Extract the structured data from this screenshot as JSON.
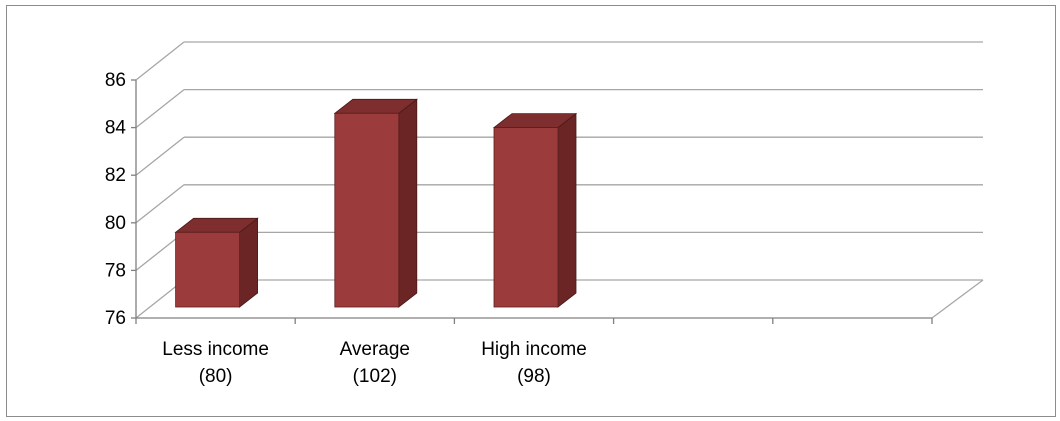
{
  "chart_data": {
    "type": "bar",
    "style": "3d-column",
    "title": "",
    "xlabel": "",
    "ylabel": "",
    "categories": [
      [
        "Less income",
        "(80)"
      ],
      [
        "Average",
        "(102)"
      ],
      [
        "High income",
        "(98)"
      ],
      [
        "",
        ""
      ],
      [
        "",
        ""
      ]
    ],
    "values": [
      79.6,
      84.6,
      84.0,
      null,
      null
    ],
    "ylim": [
      76,
      86
    ],
    "yticks": [
      "76",
      "78",
      "80",
      "82",
      "84",
      "86"
    ],
    "grid": true,
    "legend": "none",
    "colors": {
      "bar_front": "#9b3b3b",
      "bar_side": "#6b2525",
      "bar_top": "#7e2e2e",
      "grid": "#a6a6a6",
      "axis": "#808080"
    }
  }
}
